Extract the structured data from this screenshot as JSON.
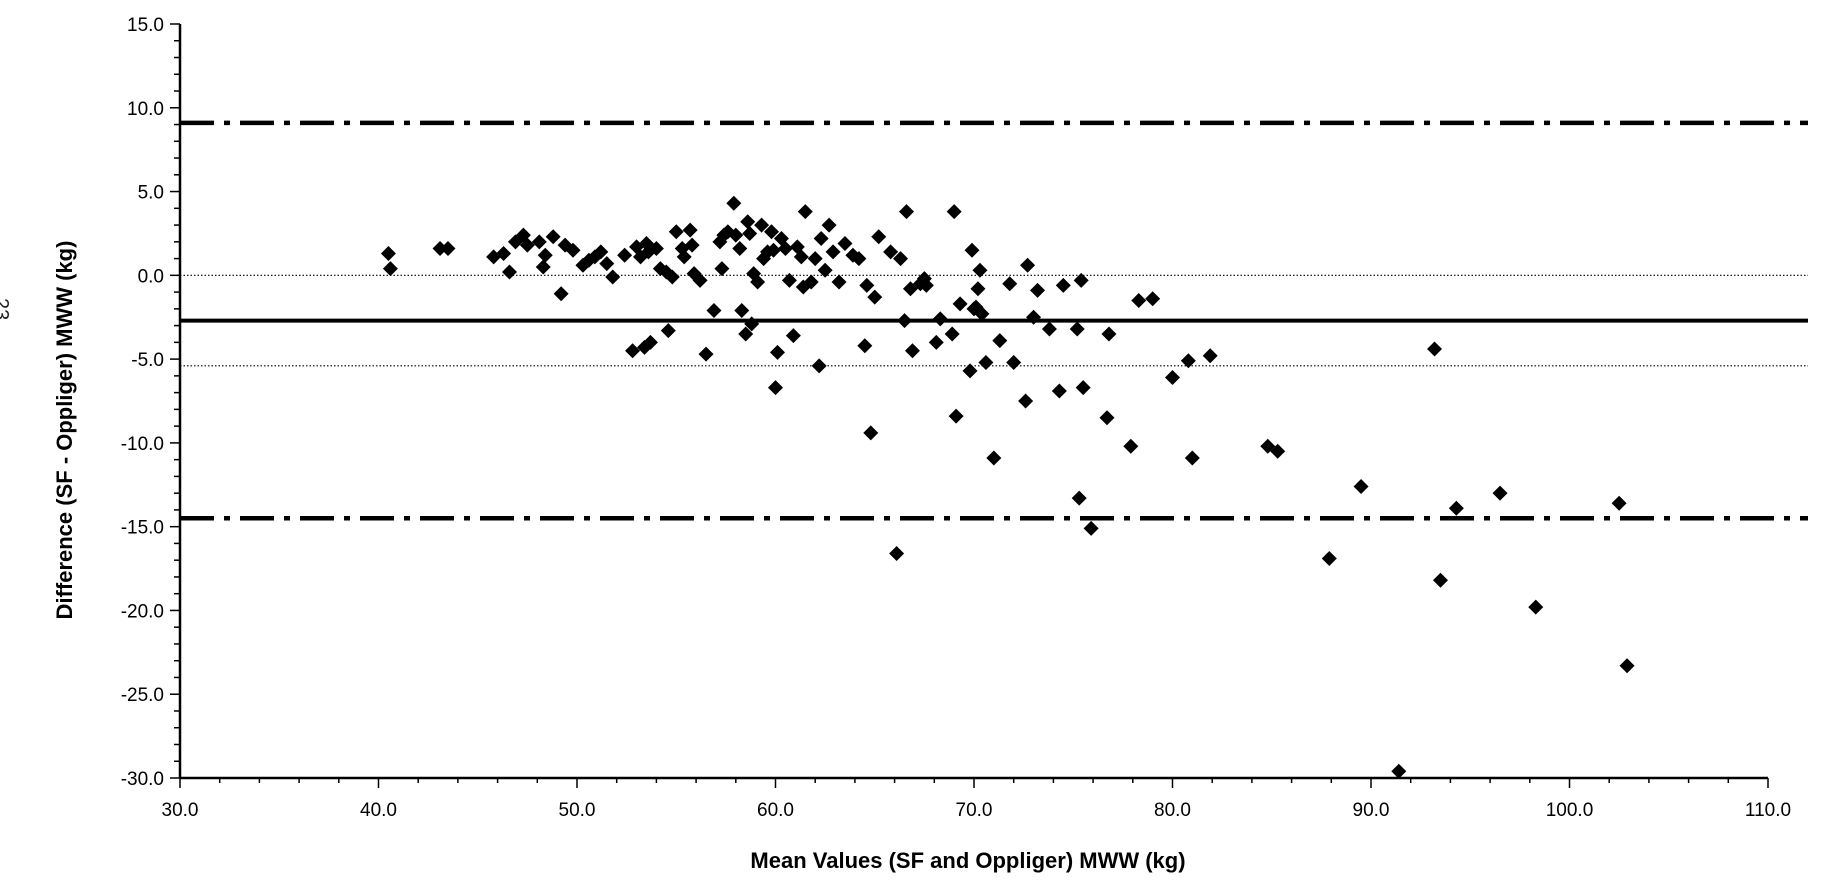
{
  "page_number": "23",
  "chart_data": {
    "type": "scatter",
    "xlabel": "Mean Values (SF and Oppliger) MWW (kg)",
    "ylabel": "Difference (SF - Oppliger) MWW (kg)",
    "xlim": [
      30,
      110
    ],
    "ylim": [
      -30,
      15
    ],
    "x_ticks": [
      "30.0",
      "40.0",
      "50.0",
      "60.0",
      "70.0",
      "80.0",
      "90.0",
      "100.0",
      "110.0"
    ],
    "y_ticks": [
      "15.0",
      "10.0",
      "5.0",
      "0.0",
      "-5.0",
      "-10.0",
      "-15.0",
      "-20.0",
      "-25.0",
      "-30.0"
    ],
    "reference_lines": [
      {
        "style": "dash-dot",
        "y": 9.1,
        "note": "upper limit of agreement"
      },
      {
        "style": "dotted",
        "y": 0.0
      },
      {
        "style": "solid",
        "y": -2.7,
        "note": "mean difference"
      },
      {
        "style": "dotted",
        "y": -5.4
      },
      {
        "style": "dash-dot",
        "y": -14.5,
        "note": "lower limit of agreement"
      }
    ],
    "points": [
      [
        40.5,
        1.3
      ],
      [
        40.6,
        0.4
      ],
      [
        43.1,
        1.6
      ],
      [
        43.5,
        1.6
      ],
      [
        45.8,
        1.1
      ],
      [
        46.3,
        1.3
      ],
      [
        46.6,
        0.2
      ],
      [
        46.9,
        2.0
      ],
      [
        47.3,
        2.4
      ],
      [
        47.5,
        1.8
      ],
      [
        48.1,
        2.0
      ],
      [
        48.3,
        0.5
      ],
      [
        48.4,
        1.2
      ],
      [
        48.8,
        2.3
      ],
      [
        49.2,
        -1.1
      ],
      [
        49.4,
        1.8
      ],
      [
        49.8,
        1.5
      ],
      [
        50.3,
        0.6
      ],
      [
        50.6,
        0.9
      ],
      [
        50.9,
        1.1
      ],
      [
        51.2,
        1.4
      ],
      [
        51.5,
        0.7
      ],
      [
        51.8,
        -0.1
      ],
      [
        52.4,
        1.2
      ],
      [
        52.8,
        -4.5
      ],
      [
        53.0,
        1.7
      ],
      [
        53.2,
        1.1
      ],
      [
        53.4,
        -4.3
      ],
      [
        53.5,
        1.9
      ],
      [
        53.6,
        1.4
      ],
      [
        53.7,
        -4.0
      ],
      [
        54.0,
        1.6
      ],
      [
        54.2,
        0.4
      ],
      [
        54.5,
        0.2
      ],
      [
        54.6,
        -3.3
      ],
      [
        54.8,
        -0.1
      ],
      [
        55.0,
        2.6
      ],
      [
        55.3,
        1.6
      ],
      [
        55.4,
        1.1
      ],
      [
        55.7,
        2.7
      ],
      [
        55.8,
        1.8
      ],
      [
        55.9,
        0.1
      ],
      [
        56.2,
        -0.3
      ],
      [
        56.5,
        -4.7
      ],
      [
        56.9,
        -2.1
      ],
      [
        57.2,
        2.0
      ],
      [
        57.3,
        0.4
      ],
      [
        57.4,
        2.4
      ],
      [
        57.6,
        2.6
      ],
      [
        57.9,
        4.3
      ],
      [
        58.0,
        2.4
      ],
      [
        58.2,
        1.6
      ],
      [
        58.3,
        -2.1
      ],
      [
        58.5,
        -3.5
      ],
      [
        58.6,
        3.2
      ],
      [
        58.7,
        2.5
      ],
      [
        58.8,
        -2.9
      ],
      [
        58.9,
        0.1
      ],
      [
        59.1,
        -0.4
      ],
      [
        59.3,
        3.0
      ],
      [
        59.4,
        1.0
      ],
      [
        59.6,
        1.4
      ],
      [
        59.8,
        2.6
      ],
      [
        59.9,
        1.5
      ],
      [
        60.0,
        -6.7
      ],
      [
        60.1,
        -4.6
      ],
      [
        60.3,
        2.2
      ],
      [
        60.5,
        1.6
      ],
      [
        60.7,
        -0.3
      ],
      [
        60.9,
        -3.6
      ],
      [
        61.1,
        1.7
      ],
      [
        61.3,
        1.1
      ],
      [
        61.4,
        -0.7
      ],
      [
        61.5,
        3.8
      ],
      [
        61.8,
        -0.4
      ],
      [
        62.0,
        1.0
      ],
      [
        62.2,
        -5.4
      ],
      [
        62.3,
        2.2
      ],
      [
        62.5,
        0.3
      ],
      [
        62.7,
        3.0
      ],
      [
        62.9,
        1.4
      ],
      [
        63.2,
        -0.4
      ],
      [
        63.5,
        1.9
      ],
      [
        63.9,
        1.2
      ],
      [
        64.2,
        1.0
      ],
      [
        64.5,
        -4.2
      ],
      [
        64.6,
        -0.6
      ],
      [
        64.8,
        -9.4
      ],
      [
        65.0,
        -1.3
      ],
      [
        65.2,
        2.3
      ],
      [
        65.8,
        1.4
      ],
      [
        66.1,
        -16.6
      ],
      [
        66.3,
        1.0
      ],
      [
        66.5,
        -2.7
      ],
      [
        66.6,
        3.8
      ],
      [
        66.8,
        -0.8
      ],
      [
        66.9,
        -4.5
      ],
      [
        67.3,
        -0.5
      ],
      [
        67.5,
        -0.2
      ],
      [
        67.6,
        -0.6
      ],
      [
        68.1,
        -4.0
      ],
      [
        68.3,
        -2.6
      ],
      [
        68.9,
        -3.5
      ],
      [
        69.0,
        3.8
      ],
      [
        69.1,
        -8.4
      ],
      [
        69.3,
        -1.7
      ],
      [
        69.8,
        -5.7
      ],
      [
        69.9,
        1.5
      ],
      [
        70.0,
        -2.0
      ],
      [
        70.1,
        -1.9
      ],
      [
        70.2,
        -0.8
      ],
      [
        70.3,
        0.3
      ],
      [
        70.4,
        -2.3
      ],
      [
        70.6,
        -5.2
      ],
      [
        71.0,
        -10.9
      ],
      [
        71.3,
        -3.9
      ],
      [
        71.8,
        -0.5
      ],
      [
        72.0,
        -5.2
      ],
      [
        72.6,
        -7.5
      ],
      [
        72.7,
        0.6
      ],
      [
        73.0,
        -2.5
      ],
      [
        73.2,
        -0.9
      ],
      [
        73.8,
        -3.2
      ],
      [
        74.3,
        -6.9
      ],
      [
        74.5,
        -0.6
      ],
      [
        75.2,
        -3.2
      ],
      [
        75.3,
        -13.3
      ],
      [
        75.4,
        -0.3
      ],
      [
        75.5,
        -6.7
      ],
      [
        75.9,
        -15.1
      ],
      [
        76.7,
        -8.5
      ],
      [
        76.8,
        -3.5
      ],
      [
        77.9,
        -10.2
      ],
      [
        78.3,
        -1.5
      ],
      [
        79.0,
        -1.4
      ],
      [
        80.0,
        -6.1
      ],
      [
        80.8,
        -5.1
      ],
      [
        81.0,
        -10.9
      ],
      [
        81.9,
        -4.8
      ],
      [
        84.8,
        -10.2
      ],
      [
        85.3,
        -10.5
      ],
      [
        87.9,
        -16.9
      ],
      [
        89.5,
        -12.6
      ],
      [
        91.4,
        -29.6
      ],
      [
        93.2,
        -4.4
      ],
      [
        93.5,
        -18.2
      ],
      [
        94.3,
        -13.9
      ],
      [
        96.5,
        -13.0
      ],
      [
        98.3,
        -19.8
      ],
      [
        102.5,
        -13.6
      ],
      [
        102.9,
        -23.3
      ]
    ]
  }
}
